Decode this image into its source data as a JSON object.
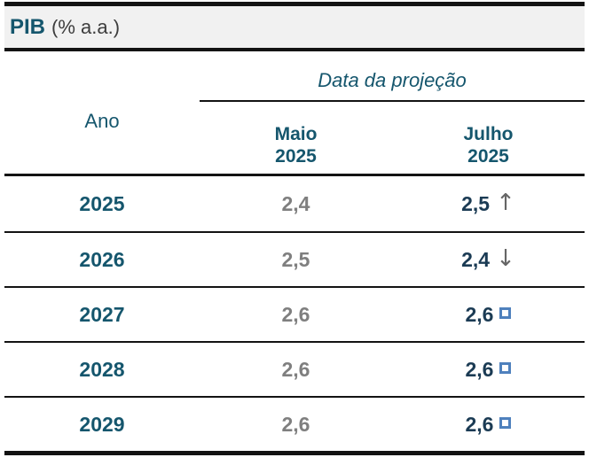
{
  "title": {
    "main": "PIB",
    "unit": "(% a.a.)"
  },
  "header": {
    "row_label": "Ano",
    "group_label": "Data da projeção",
    "columns": [
      {
        "month": "Maio",
        "year": "2025"
      },
      {
        "month": "Julho",
        "year": "2025"
      }
    ]
  },
  "icons": {
    "up": "↑",
    "down": "↓"
  },
  "table": {
    "rows": [
      {
        "year": "2025",
        "maio": "2,4",
        "julho": "2,5",
        "change": "up"
      },
      {
        "year": "2026",
        "maio": "2,5",
        "julho": "2,4",
        "change": "down"
      },
      {
        "year": "2027",
        "maio": "2,6",
        "julho": "2,6",
        "change": "unchanged"
      },
      {
        "year": "2028",
        "maio": "2,6",
        "julho": "2,6",
        "change": "unchanged"
      },
      {
        "year": "2029",
        "maio": "2,6",
        "julho": "2,6",
        "change": "unchanged"
      }
    ]
  },
  "colors": {
    "teal_text": "#15566D",
    "navy_value": "#1B3B54",
    "gray_value": "#7F7F7F",
    "arrow_gray": "#666666",
    "square_blue": "#4F81BD",
    "band_bg": "#F1F1F1",
    "rule_black": "#131313"
  },
  "chart_data": {
    "type": "table",
    "title": "PIB (% a.a.)",
    "group_header": "Data da projeção",
    "columns": [
      "Ano",
      "Maio 2025",
      "Julho 2025"
    ],
    "rows": [
      {
        "ano": 2025,
        "maio_2025": 2.4,
        "julho_2025": 2.5,
        "revision": "up"
      },
      {
        "ano": 2026,
        "maio_2025": 2.5,
        "julho_2025": 2.4,
        "revision": "down"
      },
      {
        "ano": 2027,
        "maio_2025": 2.6,
        "julho_2025": 2.6,
        "revision": "unchanged"
      },
      {
        "ano": 2028,
        "maio_2025": 2.6,
        "julho_2025": 2.6,
        "revision": "unchanged"
      },
      {
        "ano": 2029,
        "maio_2025": 2.6,
        "julho_2025": 2.6,
        "revision": "unchanged"
      }
    ]
  }
}
